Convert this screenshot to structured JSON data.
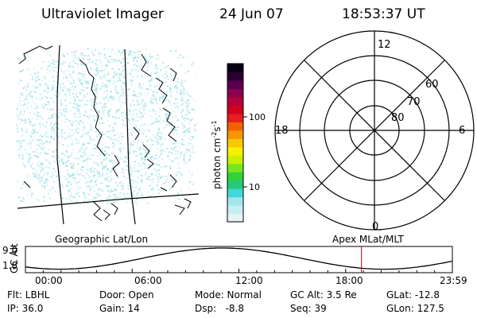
{
  "header": {
    "title": "Ultraviolet Imager",
    "date": "24 Jun 07",
    "time": "18:53:37 UT"
  },
  "left_panel": {
    "label": "Geographic Lat/Lon"
  },
  "right_panel": {
    "label": "Apex MLat/MLT",
    "mlt_labels": [
      "12",
      "18",
      "6",
      "0"
    ],
    "mlat_labels": [
      "60",
      "70",
      "80"
    ]
  },
  "colorbar": {
    "unit_label": "photon cm",
    "unit_sup1": "-2",
    "unit_mid": "s",
    "unit_sup2": "-1",
    "ticks": [
      "100",
      "10"
    ],
    "colors": [
      "#e6f3f5",
      "#c8eef2",
      "#a0e6ea",
      "#40d8d8",
      "#28c87c",
      "#32d23a",
      "#78e61e",
      "#c8f000",
      "#f5f000",
      "#f5c800",
      "#f59600",
      "#f06400",
      "#e61e1e",
      "#d2001e",
      "#b4003c",
      "#8c0050",
      "#5a0050",
      "#2d0032",
      "#0a0014"
    ]
  },
  "timeline": {
    "axis_label": "GC Alt",
    "y_ticks": [
      "9.0",
      "1.8"
    ],
    "x_ticks": [
      "00:00",
      "06:00",
      "12:00",
      "18:00",
      "23:59"
    ],
    "current_time_label": "18:53:37",
    "marker_color": "#cc0000"
  },
  "info": {
    "flt": "Flt: LBHL",
    "ip": "IP: 36.0",
    "door": "Door: Open",
    "gain": "Gain: 14",
    "mode": "Mode: Normal",
    "dsp": "Dsp:   -8.8",
    "gcalt": "GC Alt: 3.5 Re",
    "seq": "Seq: 39",
    "glat": "GLat: -12.8",
    "glon": "GLon: 127.5"
  }
}
